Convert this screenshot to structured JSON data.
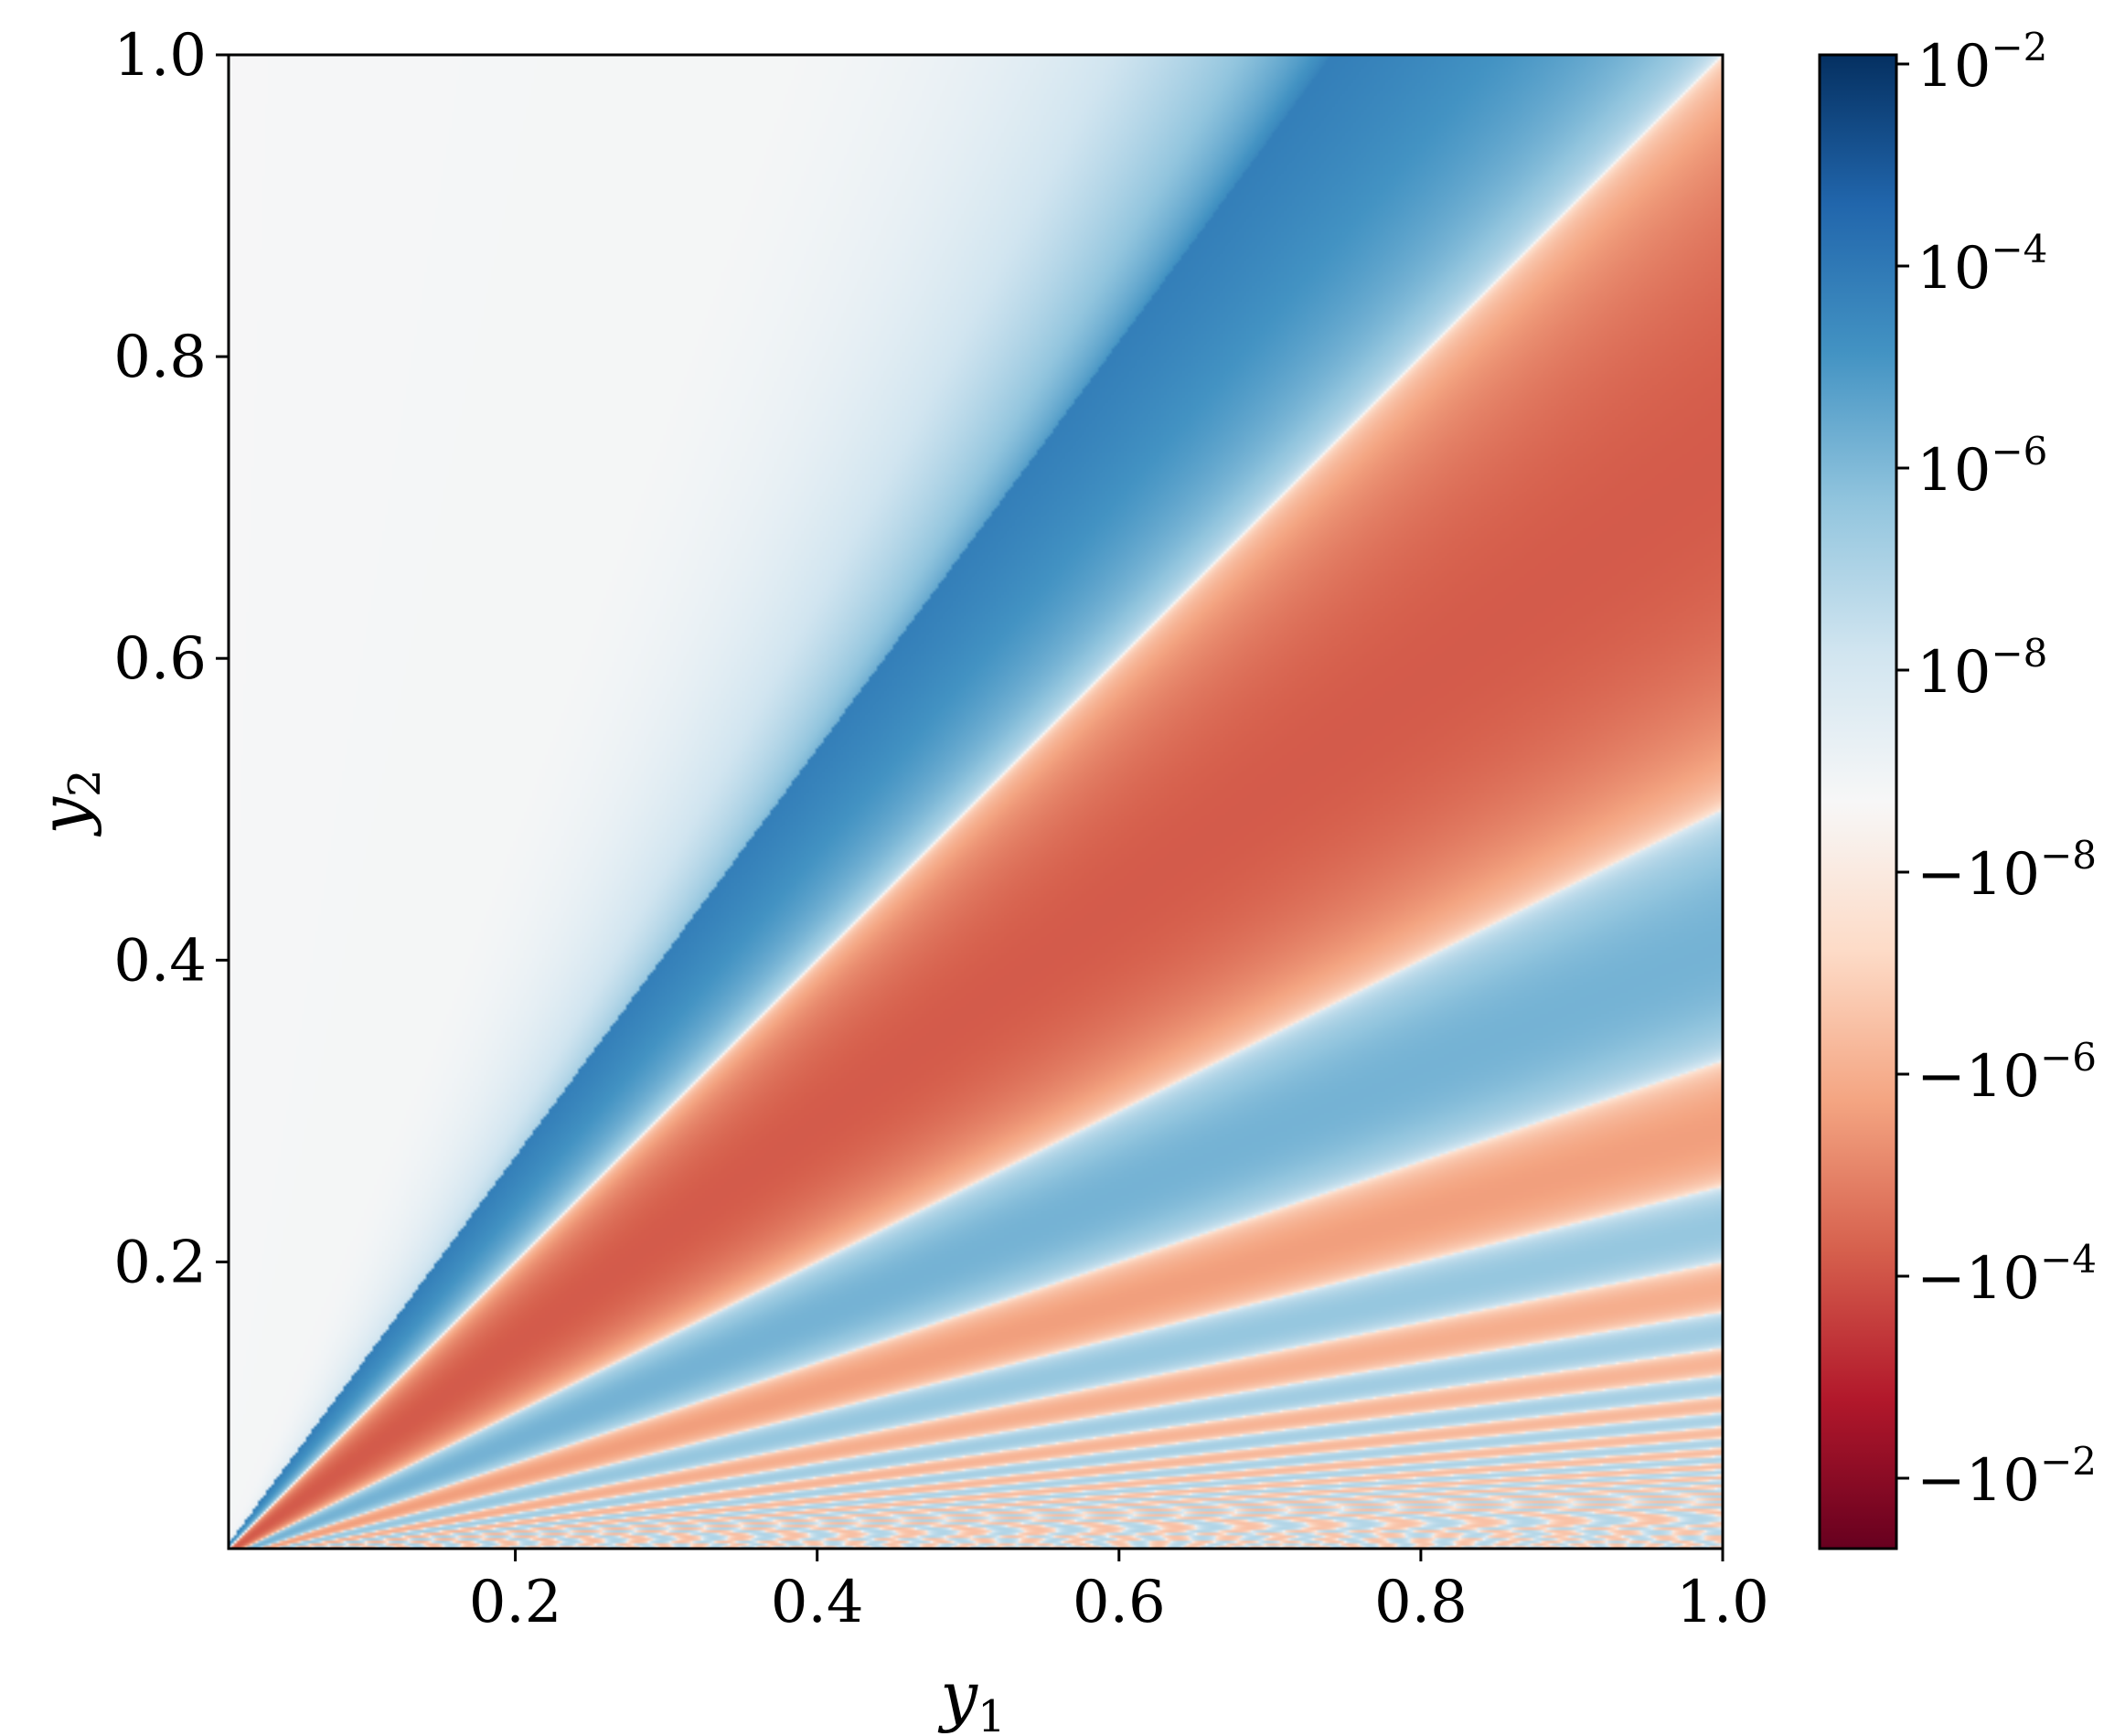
{
  "chart_data": {
    "type": "heatmap",
    "title": "",
    "xlabel": "y",
    "xlabel_sub": "1",
    "ylabel": "y",
    "ylabel_sub": "2",
    "xlim": [
      0.01,
      1.0
    ],
    "ylim": [
      0.01,
      1.0
    ],
    "x_ticks": [
      {
        "value": 0.2,
        "label": "0.2"
      },
      {
        "value": 0.4,
        "label": "0.4"
      },
      {
        "value": 0.6,
        "label": "0.6"
      },
      {
        "value": 0.8,
        "label": "0.8"
      },
      {
        "value": 1.0,
        "label": "1.0"
      }
    ],
    "y_ticks": [
      {
        "value": 0.2,
        "label": "0.2"
      },
      {
        "value": 0.4,
        "label": "0.4"
      },
      {
        "value": 0.6,
        "label": "0.6"
      },
      {
        "value": 0.8,
        "label": "0.8"
      },
      {
        "value": 1.0,
        "label": "1.0"
      }
    ],
    "colorbar": {
      "scale": "symlog",
      "colormap": "RdBu",
      "ticks": [
        {
          "mantissa": "10",
          "exponent": "−2",
          "sign": ""
        },
        {
          "mantissa": "10",
          "exponent": "−4",
          "sign": ""
        },
        {
          "mantissa": "10",
          "exponent": "−6",
          "sign": ""
        },
        {
          "mantissa": "10",
          "exponent": "−8",
          "sign": ""
        },
        {
          "mantissa": "10",
          "exponent": "−8",
          "sign": "−"
        },
        {
          "mantissa": "10",
          "exponent": "−6",
          "sign": "−"
        },
        {
          "mantissa": "10",
          "exponent": "−4",
          "sign": "−"
        },
        {
          "mantissa": "10",
          "exponent": "−2",
          "sign": "−"
        }
      ],
      "colors": [
        "#67001f",
        "#b2182b",
        "#d6604d",
        "#f4a582",
        "#fddbc7",
        "#f7f7f7",
        "#d1e5f0",
        "#92c5de",
        "#4393c3",
        "#2166ac",
        "#053061"
      ]
    }
  }
}
